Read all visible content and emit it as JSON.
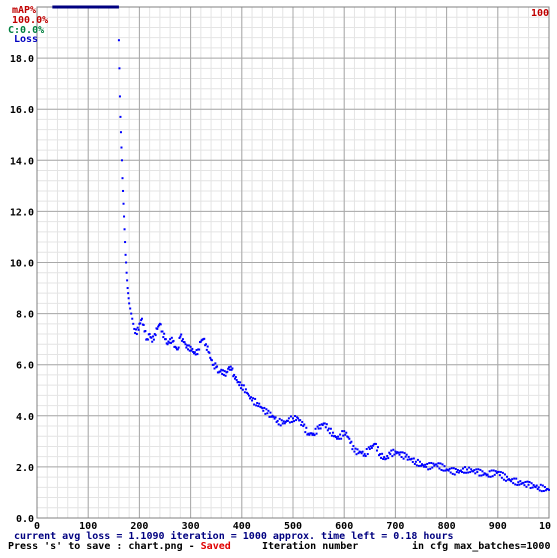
{
  "chart_data": {
    "type": "scatter",
    "labels": {
      "map_title": "mAP%",
      "map_value": "100.0%",
      "c_label": "C:0.0%",
      "loss_label": "Loss",
      "right_top": "100"
    },
    "x_ticks": [
      "0",
      "100",
      "200",
      "300",
      "400",
      "500",
      "600",
      "700",
      "800",
      "900",
      "10"
    ],
    "y_ticks": [
      "0.0",
      "2.0",
      "4.0",
      "6.0",
      "8.0",
      "10.0",
      "12.0",
      "14.0",
      "16.0",
      "18.0"
    ],
    "xlim": [
      0,
      1000
    ],
    "ylim": [
      0,
      20
    ],
    "grid": true,
    "series": [
      {
        "color": "#0000ff",
        "x": [
          160,
          161,
          162,
          163,
          164,
          165,
          166,
          167,
          168,
          169,
          170,
          171,
          172,
          173,
          174,
          175,
          176,
          177,
          178,
          179,
          180,
          182,
          184,
          186,
          188,
          190,
          195,
          200,
          205,
          210,
          215,
          220,
          225,
          230,
          235,
          240,
          245,
          250,
          255,
          260,
          265,
          270,
          275,
          280,
          285,
          290,
          295,
          300,
          305,
          310,
          315,
          320,
          325,
          330,
          335,
          340,
          345,
          350,
          355,
          360,
          365,
          370,
          375,
          380,
          385,
          390,
          395,
          400,
          410,
          420,
          430,
          440,
          450,
          460,
          470,
          480,
          490,
          500,
          510,
          520,
          530,
          540,
          550,
          560,
          570,
          580,
          590,
          600,
          610,
          620,
          630,
          640,
          650,
          660,
          670,
          680,
          690,
          700,
          720,
          740,
          760,
          780,
          800,
          820,
          840,
          860,
          880,
          900,
          920,
          940,
          960,
          980,
          1000
        ],
        "y": [
          18.7,
          17.6,
          16.5,
          15.7,
          15.1,
          14.5,
          14.0,
          13.3,
          12.8,
          12.3,
          11.8,
          11.3,
          10.8,
          10.3,
          10.0,
          9.6,
          9.3,
          9.0,
          8.8,
          8.6,
          8.4,
          8.2,
          8.0,
          7.8,
          7.6,
          7.4,
          7.2,
          7.6,
          7.8,
          7.3,
          7.0,
          7.2,
          6.9,
          7.2,
          7.4,
          7.6,
          7.3,
          7.0,
          6.8,
          7.0,
          6.9,
          6.7,
          6.6,
          7.1,
          7.0,
          6.8,
          6.6,
          6.7,
          6.5,
          6.4,
          6.6,
          6.9,
          7.0,
          6.8,
          6.5,
          6.2,
          6.0,
          5.9,
          5.7,
          5.8,
          5.6,
          5.7,
          5.9,
          5.8,
          5.6,
          5.4,
          5.2,
          5.2,
          4.9,
          4.6,
          4.5,
          4.3,
          4.1,
          4.0,
          3.8,
          3.7,
          3.8,
          3.9,
          3.9,
          3.6,
          3.3,
          3.3,
          3.5,
          3.7,
          3.5,
          3.2,
          3.1,
          3.4,
          3.1,
          2.6,
          2.6,
          2.5,
          2.7,
          2.9,
          2.5,
          2.3,
          2.5,
          2.6,
          2.4,
          2.2,
          2.0,
          2.1,
          1.9,
          1.8,
          1.9,
          1.8,
          1.7,
          1.8,
          1.5,
          1.4,
          1.3,
          1.2,
          1.1
        ]
      }
    ],
    "map_line": {
      "x": [
        30,
        160
      ],
      "y_percent": 100
    },
    "footer": {
      "line1": "current avg loss = 1.1090    iteration = 1000    approx. time left = 0.18 hours",
      "line2_prefix": "Press 's' to save : chart.png - ",
      "line2_saved": "Saved",
      "x_axis_label": "Iteration number",
      "max_batches": "in cfg max_batches=1000"
    }
  }
}
